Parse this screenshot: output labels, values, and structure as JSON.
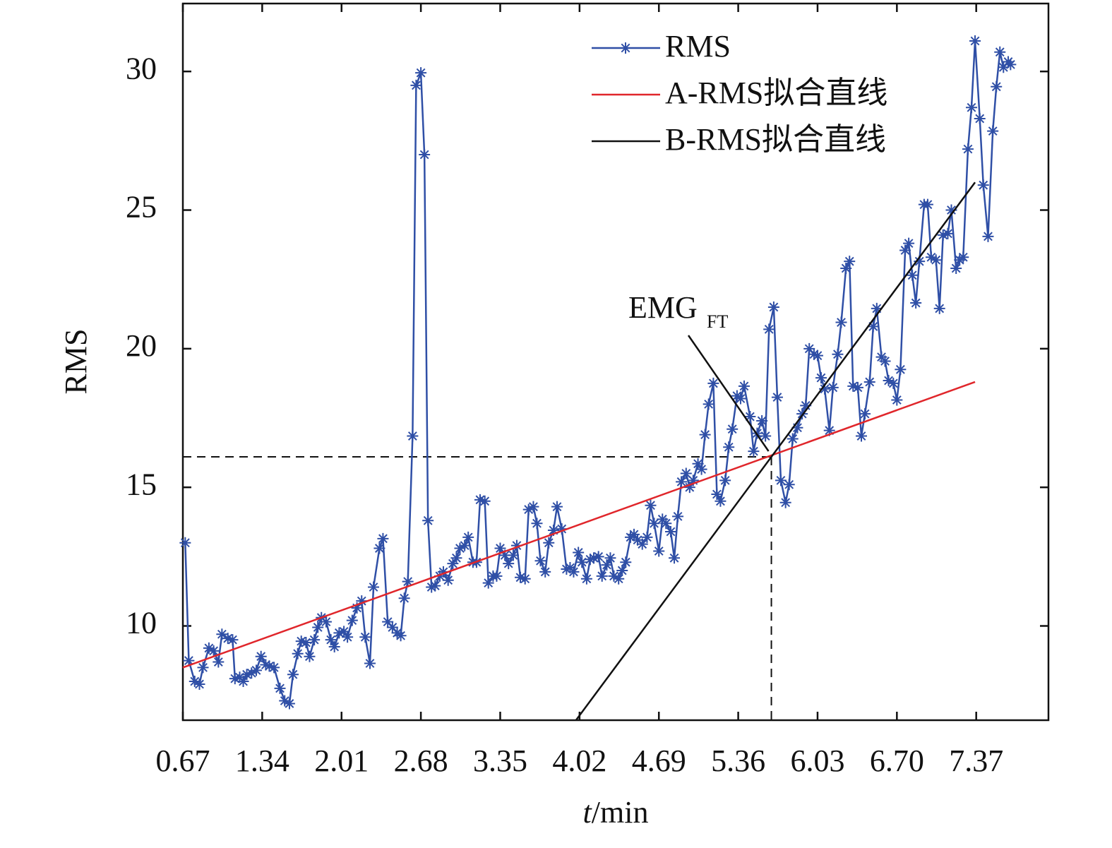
{
  "chart_data": {
    "type": "line",
    "ylabel": "RMS",
    "xlabel": {
      "var": "t",
      "unit": "/min"
    },
    "xlim": [
      0.67,
      7.98
    ],
    "ylim": [
      6.6,
      32.45
    ],
    "xticks": [
      0.67,
      1.34,
      2.01,
      2.68,
      3.35,
      4.02,
      4.69,
      5.36,
      6.03,
      {
        "value": 6.7,
        "label": "6.70"
      },
      7.37
    ],
    "yticks": [
      10,
      15,
      20,
      25,
      30
    ],
    "legend": "upper right",
    "series": [
      {
        "name": "RMS",
        "color": "#2f4fa6",
        "marker": "asterisk",
        "x": [
          0.69,
          0.72,
          0.77,
          0.81,
          0.84,
          0.89,
          0.93,
          0.97,
          1.0,
          1.05,
          1.09,
          1.11,
          1.15,
          1.18,
          1.21,
          1.25,
          1.29,
          1.33,
          1.37,
          1.4,
          1.44,
          1.49,
          1.53,
          1.57,
          1.6,
          1.64,
          1.67,
          1.71,
          1.74,
          1.78,
          1.81,
          1.84,
          1.88,
          1.92,
          1.95,
          1.99,
          2.03,
          2.06,
          2.1,
          2.14,
          2.18,
          2.21,
          2.25,
          2.28,
          2.33,
          2.36,
          2.4,
          2.44,
          2.48,
          2.51,
          2.54,
          2.57,
          2.61,
          2.64,
          2.68,
          2.71,
          2.74,
          2.77,
          2.8,
          2.84,
          2.87,
          2.91,
          2.95,
          2.98,
          3.01,
          3.05,
          3.08,
          3.12,
          3.15,
          3.18,
          3.22,
          3.25,
          3.29,
          3.32,
          3.35,
          3.39,
          3.42,
          3.46,
          3.49,
          3.52,
          3.56,
          3.59,
          3.63,
          3.66,
          3.69,
          3.73,
          3.76,
          3.8,
          3.83,
          3.87,
          3.91,
          3.94,
          3.97,
          4.01,
          4.04,
          4.08,
          4.11,
          4.14,
          4.18,
          4.21,
          4.25,
          4.28,
          4.31,
          4.35,
          4.38,
          4.41,
          4.45,
          4.48,
          4.51,
          4.55,
          4.59,
          4.62,
          4.65,
          4.69,
          4.72,
          4.75,
          4.79,
          4.82,
          4.85,
          4.88,
          4.92,
          4.95,
          4.98,
          5.02,
          5.05,
          5.08,
          5.11,
          5.15,
          5.18,
          5.21,
          5.25,
          5.28,
          5.31,
          5.35,
          5.38,
          5.41,
          5.46,
          5.49,
          5.52,
          5.56,
          5.59,
          5.62,
          5.66,
          5.69,
          5.72,
          5.76,
          5.79,
          5.82,
          5.86,
          5.9,
          5.93,
          5.96,
          6.0,
          6.03,
          6.06,
          6.09,
          6.13,
          6.16,
          6.2,
          6.23,
          6.27,
          6.3,
          6.33,
          6.37,
          6.4,
          6.43,
          6.47,
          6.5,
          6.53,
          6.57,
          6.6,
          6.63,
          6.67,
          6.7,
          6.73,
          6.77,
          6.8,
          6.83,
          6.86,
          6.89,
          6.93,
          6.96,
          6.99,
          7.03,
          7.06,
          7.09,
          7.13,
          7.16,
          7.2,
          7.23,
          7.26,
          7.3,
          7.33,
          7.36,
          7.4,
          7.43,
          7.47,
          7.51,
          7.54,
          7.57,
          7.6,
          7.64,
          7.66
        ],
        "values": [
          13.0,
          8.75,
          8.0,
          7.9,
          8.5,
          9.2,
          9.1,
          8.7,
          9.7,
          9.55,
          9.5,
          8.1,
          8.15,
          8.0,
          8.25,
          8.3,
          8.4,
          8.9,
          8.6,
          8.55,
          8.5,
          7.75,
          7.3,
          7.2,
          8.25,
          9.0,
          9.45,
          9.4,
          8.9,
          9.5,
          9.95,
          10.3,
          10.15,
          9.5,
          9.25,
          9.75,
          9.8,
          9.6,
          10.2,
          10.65,
          10.9,
          9.6,
          8.65,
          11.4,
          12.8,
          13.15,
          10.15,
          9.95,
          9.75,
          9.65,
          11.0,
          11.6,
          16.85,
          29.5,
          29.95,
          27.0,
          13.8,
          11.4,
          11.45,
          11.8,
          11.95,
          11.65,
          12.25,
          12.45,
          12.8,
          12.9,
          13.2,
          12.3,
          12.3,
          14.55,
          14.5,
          11.55,
          11.8,
          11.8,
          12.8,
          12.55,
          12.25,
          12.55,
          12.9,
          11.75,
          11.7,
          14.2,
          14.3,
          13.7,
          12.35,
          11.95,
          13.0,
          13.45,
          14.3,
          13.5,
          12.05,
          12.1,
          11.95,
          12.65,
          12.3,
          11.7,
          12.4,
          12.45,
          12.5,
          11.8,
          12.2,
          12.45,
          11.8,
          11.7,
          12.0,
          12.3,
          13.2,
          13.3,
          13.1,
          12.95,
          13.2,
          14.35,
          13.7,
          12.7,
          13.85,
          13.7,
          13.4,
          12.45,
          13.95,
          15.2,
          15.5,
          15.0,
          15.25,
          15.85,
          15.65,
          16.9,
          18.0,
          18.75,
          14.75,
          14.5,
          15.25,
          16.45,
          17.1,
          18.3,
          18.2,
          18.65,
          17.55,
          16.3,
          16.95,
          17.4,
          16.85,
          20.7,
          21.5,
          18.25,
          15.25,
          14.45,
          15.1,
          16.75,
          17.15,
          17.65,
          17.95,
          20.0,
          19.8,
          19.75,
          18.95,
          18.55,
          17.05,
          18.6,
          19.8,
          20.95,
          22.9,
          23.15,
          18.65,
          18.6,
          16.85,
          17.65,
          18.8,
          20.8,
          21.45,
          19.7,
          19.55,
          18.85,
          18.75,
          18.15,
          19.25,
          23.55,
          23.8,
          22.65,
          21.65,
          23.15,
          25.2,
          25.2,
          23.3,
          23.2,
          21.45,
          24.1,
          24.15,
          25.0,
          22.9,
          23.2,
          23.3,
          27.2,
          28.7,
          31.1,
          28.3,
          25.9,
          24.05,
          27.85,
          29.45,
          30.7,
          30.15,
          30.35,
          30.25
        ]
      },
      {
        "name": "A-RMS拟合直线",
        "color": "#e0262b",
        "x": [
          0.67,
          7.36
        ],
        "values": [
          8.5,
          18.8
        ]
      },
      {
        "name": "B-RMS拟合直线",
        "color": "#111111",
        "x": [
          3.99,
          7.36
        ],
        "values": [
          6.6,
          26.0
        ]
      }
    ],
    "annotation": {
      "text": "EMG",
      "subscript": "FT",
      "x": 5.64,
      "y": 16.1
    }
  }
}
